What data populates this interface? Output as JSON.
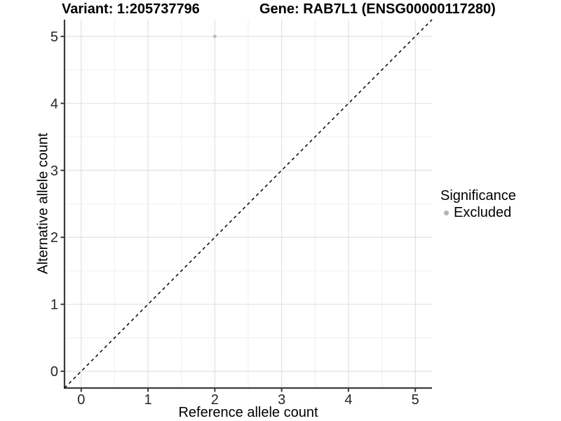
{
  "header": {
    "variant_title": "Variant: 1:205737796",
    "gene_title": "Gene: RAB7L1 (ENSG00000117280)"
  },
  "chart_data": {
    "type": "scatter",
    "title": "",
    "xlabel": "Reference allele count",
    "ylabel": "Alternative allele count",
    "xlim": [
      -0.25,
      5.25
    ],
    "ylim": [
      -0.25,
      5.25
    ],
    "x_ticks": [
      "0",
      "1",
      "2",
      "3",
      "4",
      "5"
    ],
    "y_ticks": [
      "0",
      "1",
      "2",
      "3",
      "4",
      "5"
    ],
    "x_tick_values": [
      0,
      1,
      2,
      3,
      4,
      5
    ],
    "y_tick_values": [
      0,
      1,
      2,
      3,
      4,
      5
    ],
    "minor_grid_step": 0.5,
    "grid": "major and minor gridlines on white background",
    "series": [
      {
        "name": "Excluded",
        "color": "#bdbdbd",
        "points": [
          {
            "x": 2,
            "y": 5
          }
        ]
      }
    ],
    "reference_line": {
      "kind": "identity y=x",
      "style": "dashed",
      "color": "#000000",
      "from": [
        -0.25,
        -0.25
      ],
      "to": [
        5.25,
        5.25
      ]
    },
    "legend": {
      "title": "Significance",
      "position": "right",
      "items": [
        {
          "label": "Excluded",
          "color": "#b3b3b3"
        }
      ]
    },
    "styles": {
      "grid_major_color": "#e2e2e2",
      "grid_minor_color": "#f0f0f0",
      "axis_line_color": "#3c3c3c",
      "tick_label_color": "#262626",
      "point_radius": 2.5,
      "legend_dot_diameter": 7
    }
  }
}
